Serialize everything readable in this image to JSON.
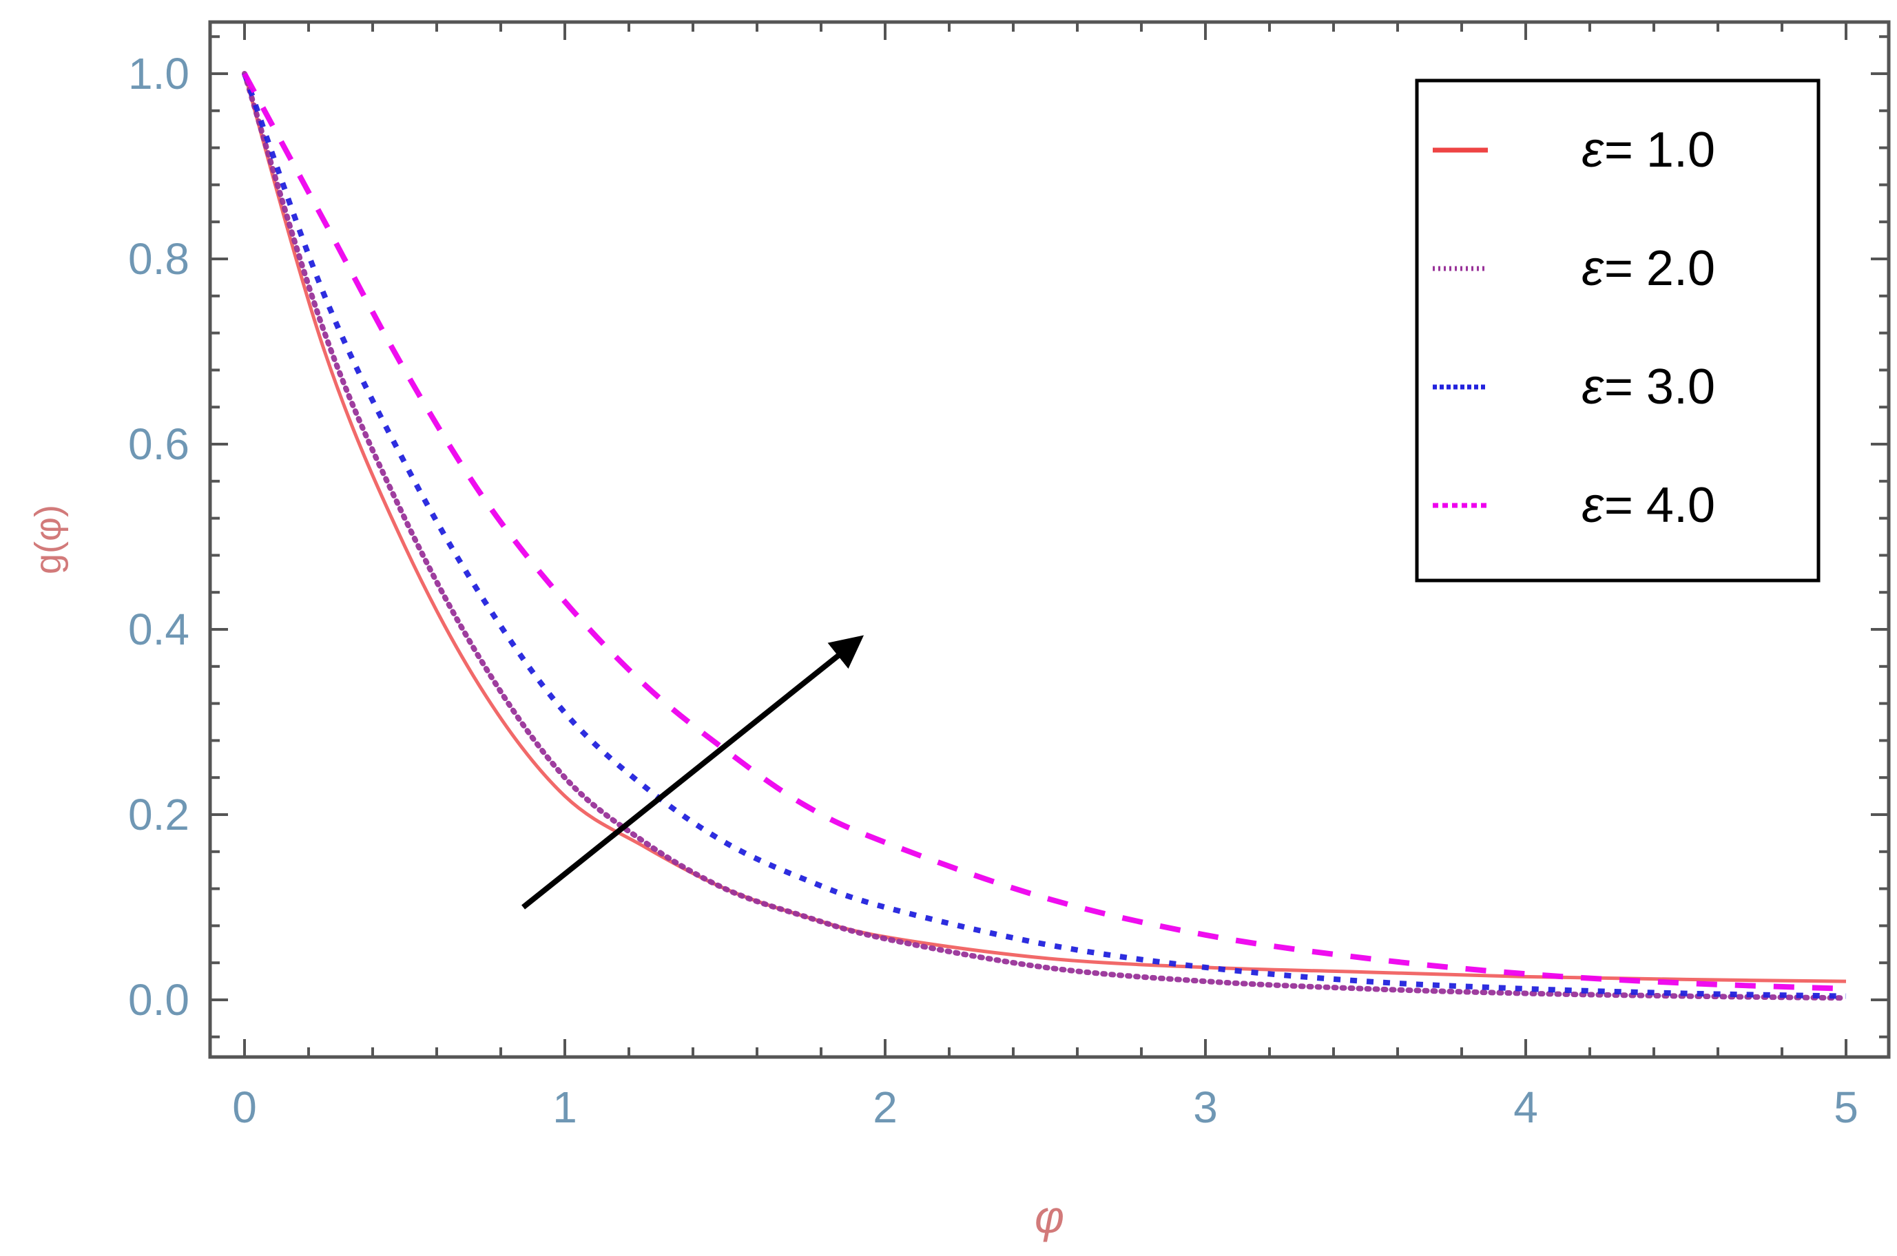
{
  "chart_data": {
    "type": "line",
    "title": "",
    "xlabel": "φ",
    "ylabel": "g(φ)",
    "xlim": [
      0,
      5
    ],
    "ylim": [
      -0.06,
      1.06
    ],
    "x_ticks": [
      0,
      1,
      2,
      3,
      4,
      5
    ],
    "x_tick_labels": [
      "0",
      "1",
      "2",
      "3",
      "4",
      "5"
    ],
    "y_ticks": [
      0.0,
      0.2,
      0.4,
      0.6,
      0.8,
      1.0
    ],
    "y_tick_labels": [
      "0.0",
      "0.2",
      "0.4",
      "0.6",
      "0.8",
      "1.0"
    ],
    "grid": false,
    "legend_position": "top-right",
    "legend_prefix": "ε=",
    "x": [
      0,
      0.25,
      0.5,
      0.75,
      1.0,
      1.25,
      1.5,
      1.75,
      2.0,
      2.5,
      3.0,
      3.5,
      4.0,
      4.5,
      5.0
    ],
    "series": [
      {
        "name": "ε= 1.0",
        "legend_value": "1.0",
        "color": "#ee4444",
        "style": "solid",
        "values": [
          1.0,
          0.7,
          0.49,
          0.33,
          0.22,
          0.165,
          0.12,
          0.09,
          0.068,
          0.045,
          0.035,
          0.03,
          0.025,
          0.022,
          0.02
        ]
      },
      {
        "name": "ε= 2.0",
        "legend_value": "2.0",
        "color": "#993399",
        "style": "dotted",
        "values": [
          1.0,
          0.72,
          0.52,
          0.36,
          0.24,
          0.17,
          0.12,
          0.09,
          0.066,
          0.035,
          0.02,
          0.012,
          0.007,
          0.004,
          0.002
        ]
      },
      {
        "name": "ε= 3.0",
        "legend_value": "3.0",
        "color": "#2222dd",
        "style": "short-dash",
        "values": [
          1.0,
          0.76,
          0.58,
          0.43,
          0.31,
          0.23,
          0.17,
          0.13,
          0.1,
          0.06,
          0.035,
          0.02,
          0.012,
          0.007,
          0.004
        ]
      },
      {
        "name": "ε= 4.0",
        "legend_value": "4.0",
        "color": "#ee00ee",
        "style": "long-dash",
        "values": [
          1.0,
          0.84,
          0.68,
          0.54,
          0.43,
          0.34,
          0.27,
          0.21,
          0.17,
          0.11,
          0.07,
          0.045,
          0.028,
          0.018,
          0.012
        ]
      }
    ],
    "annotations": [
      {
        "type": "arrow",
        "from": [
          0.87,
          0.1
        ],
        "to": [
          1.92,
          0.39
        ],
        "color": "#000000"
      }
    ]
  }
}
